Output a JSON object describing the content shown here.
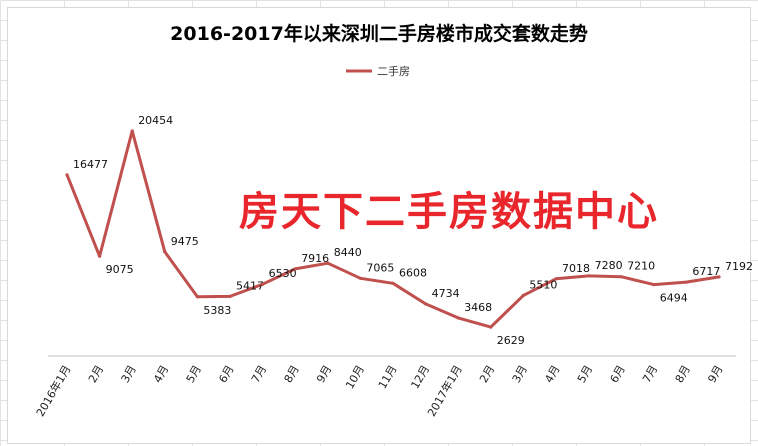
{
  "watermark": "房天下二手房数据中心",
  "colors": {
    "series": "#c0504d",
    "watermark": "#e8262b",
    "axis": "#bfbfbf"
  },
  "chart_data": {
    "type": "line",
    "title": "2016-2017年以来深圳二手房楼市成交套数走势",
    "legend_position": "top-center",
    "grid": false,
    "categories": [
      "2016年1月",
      "2月",
      "3月",
      "4月",
      "5月",
      "6月",
      "7月",
      "8月",
      "9月",
      "10月",
      "11月",
      "12月",
      "2017年1月",
      "2月",
      "3月",
      "4月",
      "5月",
      "6月",
      "7月",
      "8月",
      "9月"
    ],
    "ylim": [
      0,
      24000
    ],
    "series": [
      {
        "name": "二手房",
        "values": [
          16477,
          9075,
          20454,
          9475,
          5383,
          5417,
          6530,
          7916,
          8440,
          7065,
          6608,
          4734,
          3468,
          2629,
          5510,
          7018,
          7280,
          7210,
          6494,
          6717,
          7192
        ]
      }
    ]
  }
}
